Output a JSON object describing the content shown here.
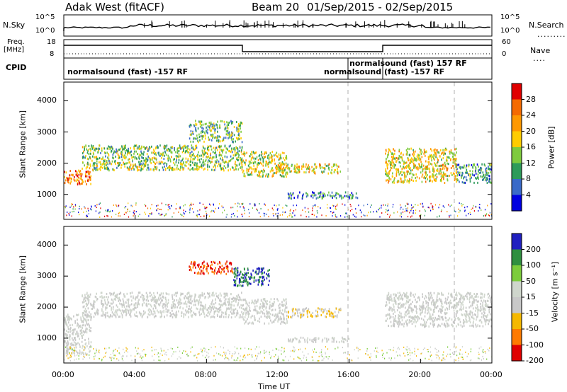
{
  "header": {
    "station": "Adak West (fitACF)",
    "beam": "Beam 20",
    "date_range": "01/Sep/2015 - 02/Sep/2015"
  },
  "top_panels": {
    "nsky_label": "N.Sky",
    "nsky_ticks": [
      "10^5",
      "10^0"
    ],
    "nsearch_label": "N.Search",
    "nsearch_ticks": [
      "10^5",
      "10^0"
    ],
    "freq_label_1": "Freq.",
    "freq_label_2": "[MHz]",
    "freq_ticks": [
      "18",
      "8"
    ],
    "nave_label": "Nave",
    "nave_ticks": [
      "60",
      "0"
    ],
    "cpid_label": "CPID",
    "cpid_entries": [
      {
        "text": "normalsound (fast) -157 RF"
      },
      {
        "text": "normalsound (fast) 157 RF"
      },
      {
        "text": "normalsound (fast) -157 RF"
      }
    ]
  },
  "chart_data": [
    {
      "type": "heatmap",
      "panel": "power",
      "ylabel": "Slant Range [km]",
      "ylim": [
        200,
        4600
      ],
      "yticks": [
        "1000",
        "2000",
        "3000",
        "4000"
      ],
      "colorbar_label": "Power [dB]",
      "colorbar_ticks": [
        "28",
        "24",
        "20",
        "16",
        "12",
        "8",
        "4"
      ],
      "colorbar_colors": [
        "#e00000",
        "#f56a00",
        "#ff9800",
        "#ffcc00",
        "#7ecb3e",
        "#2e9b5a",
        "#3a6ac8",
        "#0000e0"
      ],
      "regions": [
        {
          "t": [
            0.0,
            1.5
          ],
          "r": [
            1350,
            1800
          ],
          "level": 24
        },
        {
          "t": [
            1.0,
            10.0
          ],
          "r": [
            1800,
            2600
          ],
          "level": 14
        },
        {
          "t": [
            7.0,
            10.0
          ],
          "r": [
            2700,
            3400
          ],
          "level": 12
        },
        {
          "t": [
            10.0,
            12.5
          ],
          "r": [
            1600,
            2400
          ],
          "level": 16
        },
        {
          "t": [
            12.0,
            15.5
          ],
          "r": [
            1700,
            2000
          ],
          "level": 18
        },
        {
          "t": [
            12.5,
            16.5
          ],
          "r": [
            900,
            1100
          ],
          "level": 8
        },
        {
          "t": [
            18.0,
            22.0
          ],
          "r": [
            1400,
            2500
          ],
          "level": 18
        },
        {
          "t": [
            22.0,
            24.0
          ],
          "r": [
            1400,
            2000
          ],
          "level": 10
        }
      ]
    },
    {
      "type": "heatmap",
      "panel": "velocity",
      "ylabel": "Slant Range [km]",
      "ylim": [
        200,
        4600
      ],
      "yticks": [
        "1000",
        "2000",
        "3000",
        "4000"
      ],
      "colorbar_label": "Velocity [m s⁻¹]",
      "colorbar_ticks": [
        "200",
        "100",
        "50",
        "15",
        "-15",
        "-50",
        "-100",
        "-200"
      ],
      "colorbar_colors": [
        "#2020c0",
        "#2f8f40",
        "#7ccc3c",
        "#cfd6cc",
        "#c8c8c8",
        "#f5b800",
        "#ff7a00",
        "#e00000"
      ],
      "regions": [
        {
          "t": [
            0.0,
            1.5
          ],
          "r": [
            500,
            1800
          ],
          "level": 0
        },
        {
          "t": [
            1.0,
            10.0
          ],
          "r": [
            1700,
            2500
          ],
          "level": 0
        },
        {
          "t": [
            7.0,
            9.5
          ],
          "r": [
            3100,
            3500
          ],
          "level": -150
        },
        {
          "t": [
            9.5,
            11.5
          ],
          "r": [
            2700,
            3300
          ],
          "level": 150
        },
        {
          "t": [
            10.0,
            12.5
          ],
          "r": [
            1500,
            2300
          ],
          "level": 0
        },
        {
          "t": [
            12.5,
            15.5
          ],
          "r": [
            1700,
            2000
          ],
          "level": -30
        },
        {
          "t": [
            12.5,
            16.0
          ],
          "r": [
            900,
            1050
          ],
          "level": 0
        },
        {
          "t": [
            18.0,
            24.0
          ],
          "r": [
            1400,
            2500
          ],
          "level": 0
        }
      ]
    }
  ],
  "xaxis": {
    "ticks": [
      "00:00",
      "04:00",
      "08:00",
      "12:00",
      "16:00",
      "20:00",
      "00:00"
    ],
    "label": "Time UT"
  },
  "colors": {
    "frame": "#000000",
    "dashed_marker": "#b0b0b0"
  }
}
